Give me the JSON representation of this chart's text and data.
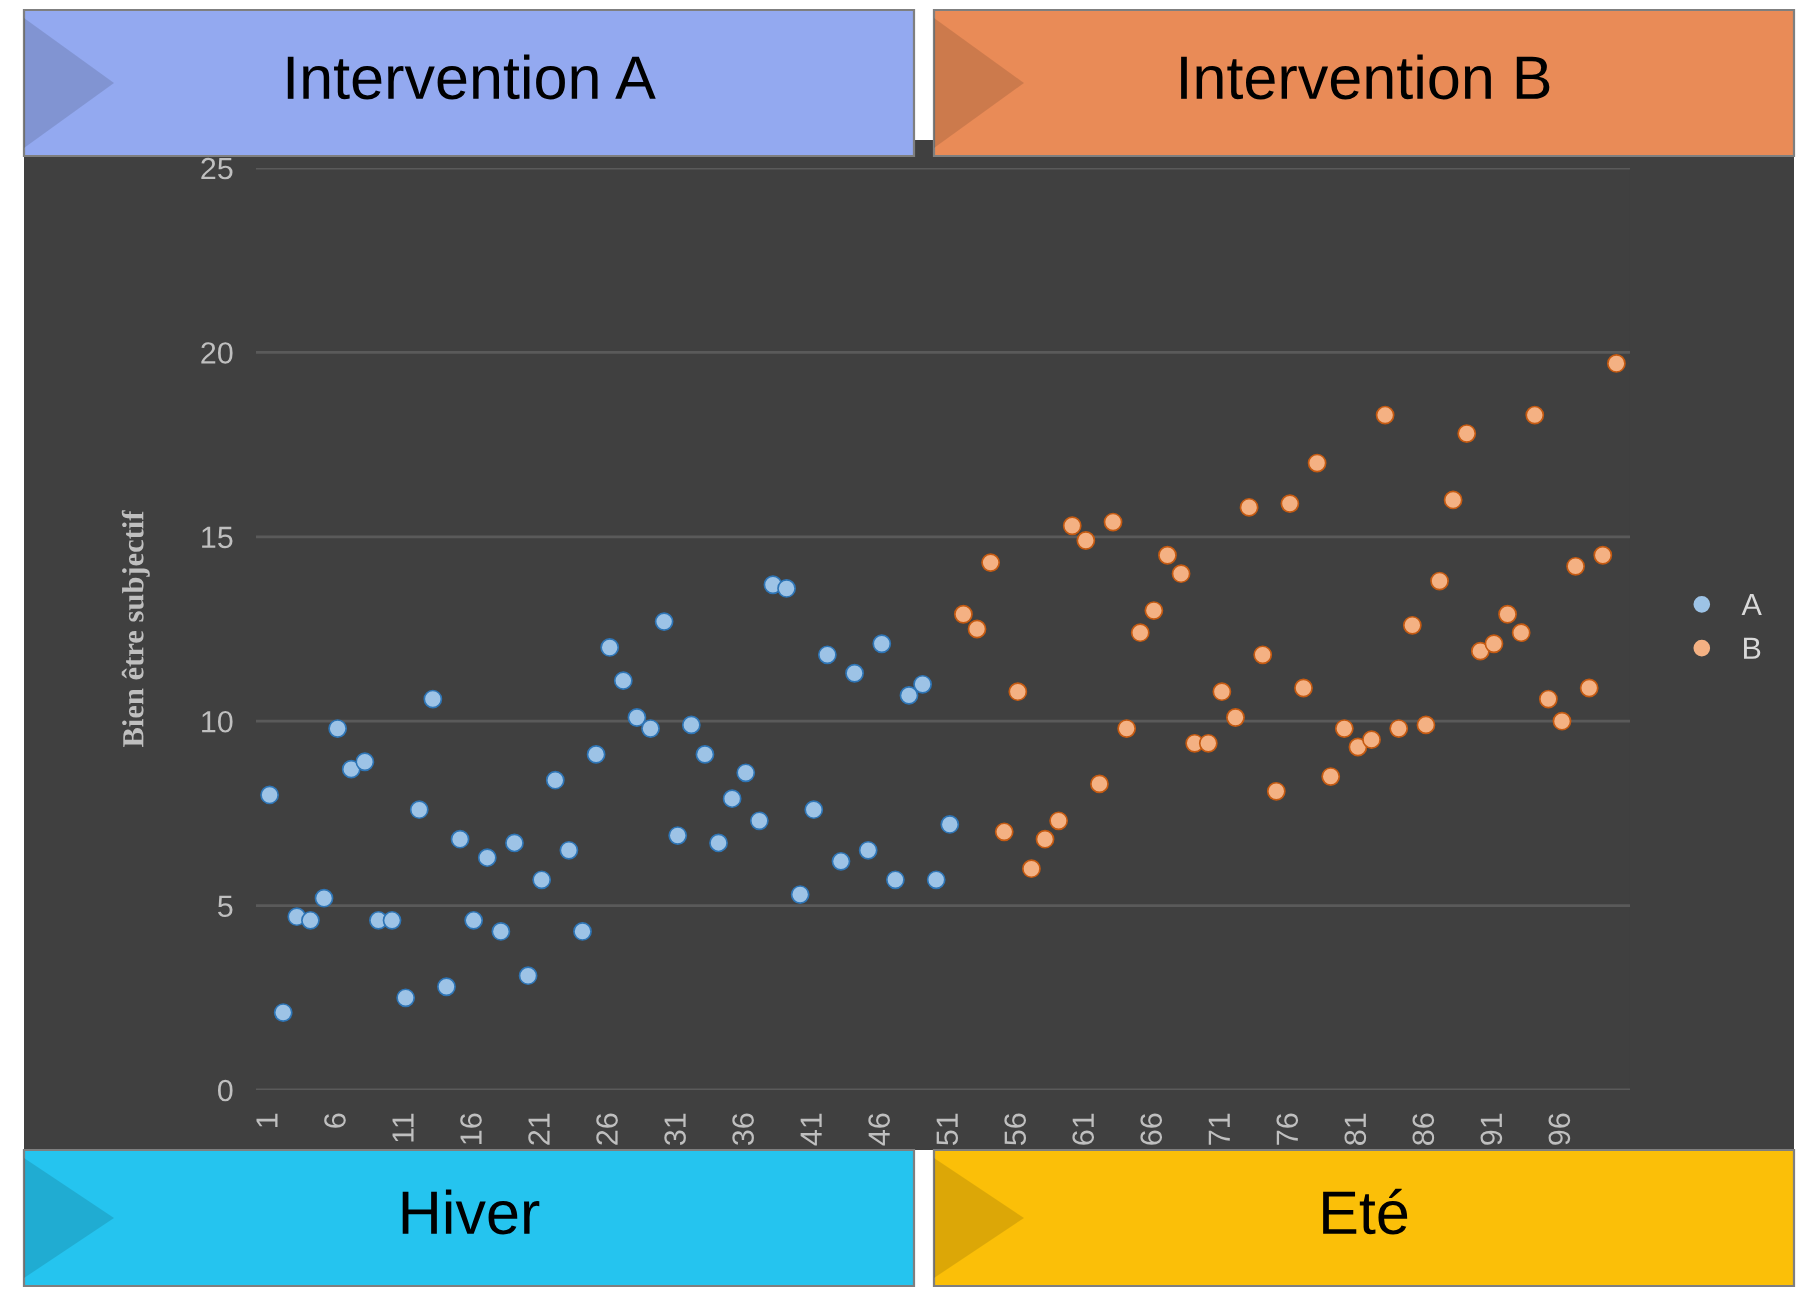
{
  "chart_data": {
    "type": "scatter",
    "ylabel": "Bien être subjectif",
    "annotations": [
      "Intervention A",
      "Intervention B",
      "Hiver",
      "Eté"
    ],
    "xlim": [
      0,
      101
    ],
    "xticks": [
      1,
      6,
      11,
      16,
      21,
      26,
      31,
      36,
      41,
      46,
      51,
      56,
      61,
      66,
      71,
      76,
      81,
      86,
      91,
      96
    ],
    "ylim": [
      0,
      25
    ],
    "yticks": [
      0,
      5,
      10,
      15,
      20,
      25
    ],
    "grid": "y",
    "legend": "right",
    "marker": "circle",
    "series": [
      {
        "name": "A",
        "color": "#9dc3e6",
        "x": [
          1,
          2,
          3,
          4,
          5,
          6,
          7,
          8,
          9,
          10,
          11,
          12,
          13,
          14,
          15,
          16,
          17,
          18,
          19,
          20,
          21,
          22,
          23,
          24,
          25,
          26,
          27,
          28,
          29,
          30,
          31,
          32,
          33,
          34,
          35,
          36,
          37,
          38,
          39,
          40,
          41,
          42,
          43,
          44,
          45,
          46,
          47,
          48,
          49,
          50,
          51
        ],
        "values": [
          8.0,
          2.1,
          4.7,
          4.6,
          5.2,
          9.8,
          8.7,
          8.9,
          4.6,
          4.6,
          2.5,
          7.6,
          10.6,
          2.8,
          6.8,
          4.6,
          6.3,
          4.3,
          6.7,
          3.1,
          5.7,
          8.4,
          6.5,
          4.3,
          9.1,
          12.0,
          11.1,
          10.1,
          9.8,
          12.7,
          6.9,
          9.9,
          9.1,
          6.7,
          7.9,
          8.6,
          7.3,
          13.7,
          13.6,
          5.3,
          7.6,
          11.8,
          6.2,
          11.3,
          6.5,
          12.1,
          5.7,
          10.7,
          11.0,
          5.7,
          7.2
        ]
      },
      {
        "name": "B",
        "color": "#f4b183",
        "x": [
          52,
          53,
          54,
          55,
          56,
          57,
          58,
          59,
          60,
          61,
          62,
          63,
          64,
          65,
          66,
          67,
          68,
          69,
          70,
          71,
          72,
          73,
          74,
          75,
          76,
          77,
          78,
          79,
          80,
          81,
          82,
          83,
          84,
          85,
          86,
          87,
          88,
          89,
          90,
          91,
          92,
          93,
          94,
          95,
          96,
          97,
          98,
          99,
          100
        ],
        "values": [
          12.9,
          12.5,
          14.3,
          7.0,
          10.8,
          6.0,
          6.8,
          7.3,
          15.3,
          14.9,
          8.3,
          15.4,
          9.8,
          12.4,
          13.0,
          14.5,
          14.0,
          9.4,
          9.4,
          10.8,
          10.1,
          15.8,
          11.8,
          8.1,
          15.9,
          10.9,
          17.0,
          8.5,
          9.8,
          9.3,
          9.5,
          18.3,
          9.8,
          12.6,
          9.9,
          13.8,
          16.0,
          17.8,
          11.9,
          12.1,
          12.9,
          12.4,
          18.3,
          10.6,
          10.0,
          14.2,
          10.9,
          14.5,
          19.7
        ]
      }
    ]
  }
}
